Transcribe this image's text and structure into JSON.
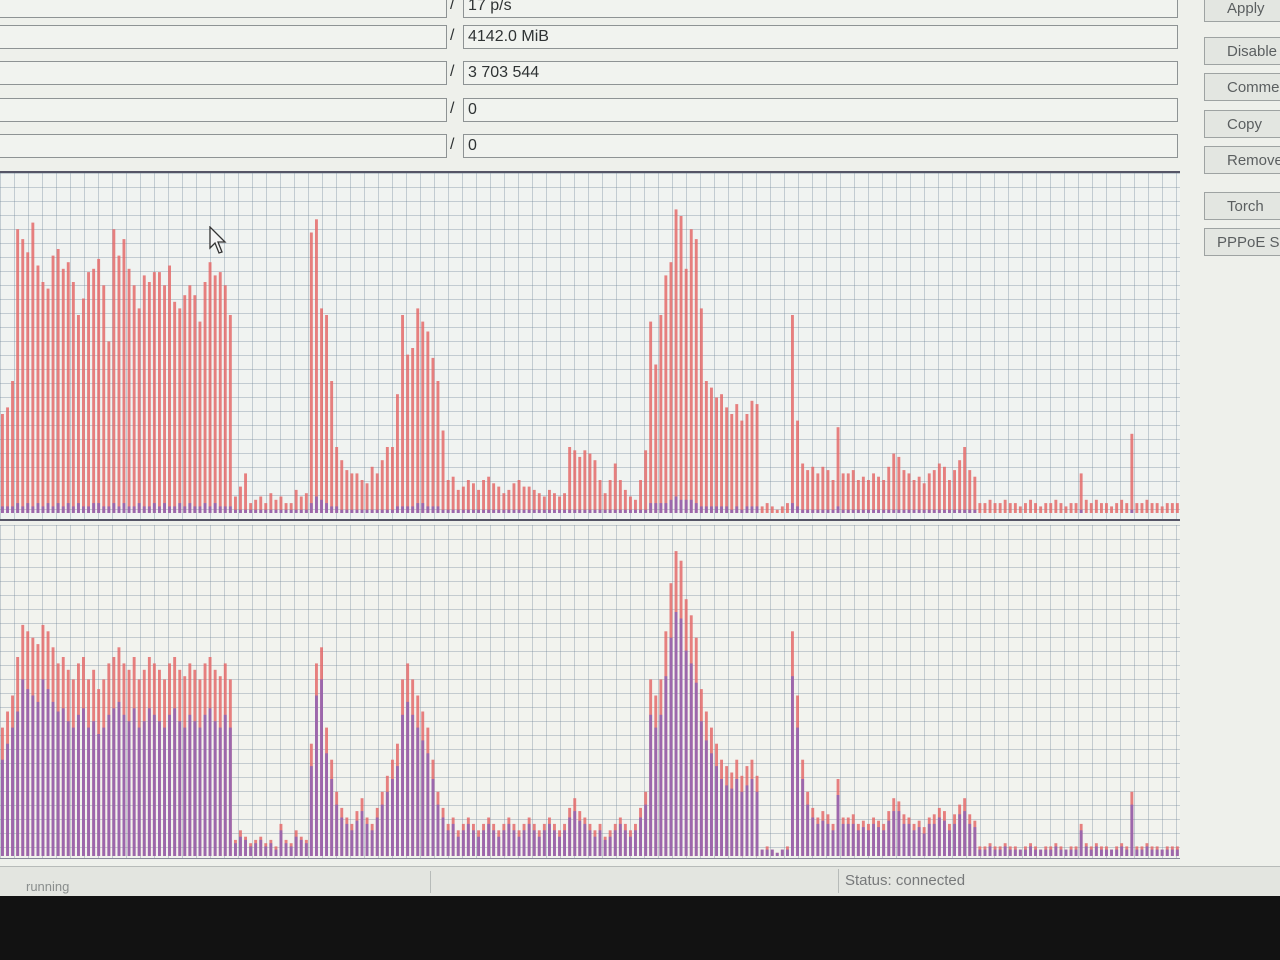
{
  "stats": [
    {
      "value": "17 p/s"
    },
    {
      "value": "4142.0 MiB"
    },
    {
      "value": "3 703 544"
    },
    {
      "value": "0"
    },
    {
      "value": "0"
    }
  ],
  "stat_separator": "/",
  "buttons": [
    "Apply",
    "Disable",
    "Comment",
    "Copy",
    "Remove",
    "Torch",
    "PPPoE Scan"
  ],
  "status": {
    "left": "running",
    "right": "Status: connected"
  },
  "colors": {
    "tx": "#e46a6a",
    "rx": "#8a62b8",
    "grid": "#9aa9b8",
    "background": "#f0f3f1"
  },
  "chart_data": [
    {
      "type": "bar",
      "title": "",
      "series": [
        {
          "values": [
            0.3,
            0.32,
            0.4,
            0.86,
            0.83,
            0.79,
            0.88,
            0.75,
            0.7,
            0.68,
            0.78,
            0.8,
            0.74,
            0.76,
            0.7,
            0.6,
            0.65,
            0.73,
            0.74,
            0.77,
            0.69,
            0.52,
            0.86,
            0.78,
            0.83,
            0.74,
            0.69,
            0.62,
            0.72,
            0.7,
            0.73,
            0.73,
            0.69,
            0.75,
            0.64,
            0.62,
            0.66,
            0.69,
            0.66,
            0.58,
            0.7,
            0.76,
            0.72,
            0.73,
            0.69,
            0.6,
            0.05,
            0.08,
            0.12,
            0.03,
            0.04,
            0.05,
            0.03,
            0.06,
            0.04,
            0.05,
            0.03,
            0.03,
            0.07,
            0.05,
            0.06,
            0.85,
            0.89,
            0.62,
            0.6,
            0.4,
            0.2,
            0.16,
            0.13,
            0.12,
            0.12,
            0.1,
            0.09,
            0.14,
            0.12,
            0.16,
            0.2,
            0.2,
            0.36,
            0.6,
            0.48,
            0.5,
            0.62,
            0.58,
            0.55,
            0.47,
            0.4,
            0.25,
            0.1,
            0.11,
            0.07,
            0.08,
            0.1,
            0.09,
            0.07,
            0.1,
            0.11,
            0.09,
            0.08,
            0.06,
            0.07,
            0.09,
            0.1,
            0.08,
            0.08,
            0.07,
            0.06,
            0.05,
            0.07,
            0.06,
            0.05,
            0.06,
            0.2,
            0.19,
            0.17,
            0.19,
            0.18,
            0.16,
            0.1,
            0.06,
            0.1,
            0.15,
            0.1,
            0.07,
            0.05,
            0.04,
            0.1,
            0.19,
            0.58,
            0.45,
            0.6,
            0.72,
            0.76,
            0.92,
            0.9,
            0.74,
            0.86,
            0.83,
            0.62,
            0.4,
            0.38,
            0.35,
            0.36,
            0.32,
            0.3,
            0.33,
            0.28,
            0.3,
            0.34,
            0.33,
            0.02,
            0.03,
            0.02,
            0.01,
            0.02,
            0.03,
            0.6,
            0.28,
            0.15,
            0.13,
            0.14,
            0.12,
            0.14,
            0.13,
            0.1,
            0.26,
            0.12,
            0.12,
            0.13,
            0.1,
            0.11,
            0.1,
            0.12,
            0.11,
            0.1,
            0.14,
            0.18,
            0.17,
            0.13,
            0.12,
            0.1,
            0.11,
            0.09,
            0.12,
            0.13,
            0.15,
            0.14,
            0.1,
            0.13,
            0.16,
            0.2,
            0.13,
            0.11,
            0.03,
            0.03,
            0.04,
            0.03,
            0.03,
            0.04,
            0.03,
            0.03,
            0.02,
            0.03,
            0.04,
            0.03,
            0.02,
            0.03,
            0.03,
            0.04,
            0.03,
            0.02,
            0.03,
            0.03,
            0.12,
            0.04,
            0.03,
            0.04,
            0.03,
            0.03,
            0.02,
            0.03,
            0.04,
            0.03,
            0.24,
            0.03,
            0.03,
            0.04,
            0.03,
            0.03,
            0.02,
            0.03,
            0.03,
            0.03
          ]
        },
        {
          "values": [
            0.02,
            0.02,
            0.02,
            0.03,
            0.02,
            0.03,
            0.02,
            0.03,
            0.02,
            0.03,
            0.02,
            0.03,
            0.02,
            0.03,
            0.02,
            0.03,
            0.02,
            0.02,
            0.03,
            0.03,
            0.02,
            0.02,
            0.03,
            0.02,
            0.03,
            0.02,
            0.02,
            0.03,
            0.02,
            0.02,
            0.03,
            0.02,
            0.03,
            0.02,
            0.02,
            0.03,
            0.02,
            0.03,
            0.02,
            0.02,
            0.03,
            0.02,
            0.03,
            0.02,
            0.02,
            0.02,
            0.01,
            0.01,
            0.01,
            0.01,
            0.01,
            0.01,
            0.01,
            0.01,
            0.01,
            0.01,
            0.01,
            0.01,
            0.01,
            0.01,
            0.01,
            0.03,
            0.05,
            0.04,
            0.03,
            0.02,
            0.02,
            0.01,
            0.01,
            0.01,
            0.01,
            0.01,
            0.01,
            0.01,
            0.01,
            0.01,
            0.01,
            0.01,
            0.02,
            0.02,
            0.02,
            0.02,
            0.03,
            0.03,
            0.02,
            0.02,
            0.02,
            0.01,
            0.01,
            0.01,
            0.01,
            0.01,
            0.01,
            0.01,
            0.01,
            0.01,
            0.01,
            0.01,
            0.01,
            0.01,
            0.01,
            0.01,
            0.01,
            0.01,
            0.01,
            0.01,
            0.01,
            0.01,
            0.01,
            0.01,
            0.01,
            0.01,
            0.01,
            0.01,
            0.01,
            0.01,
            0.01,
            0.01,
            0.01,
            0.01,
            0.01,
            0.01,
            0.01,
            0.01,
            0.01,
            0.01,
            0.01,
            0.01,
            0.03,
            0.03,
            0.03,
            0.03,
            0.04,
            0.05,
            0.04,
            0.04,
            0.04,
            0.03,
            0.02,
            0.02,
            0.02,
            0.02,
            0.02,
            0.02,
            0.01,
            0.02,
            0.01,
            0.02,
            0.02,
            0.02,
            0.0,
            0.0,
            0.0,
            0.0,
            0.0,
            0.0,
            0.03,
            0.02,
            0.01,
            0.01,
            0.01,
            0.01,
            0.01,
            0.01,
            0.01,
            0.02,
            0.01,
            0.01,
            0.01,
            0.01,
            0.01,
            0.01,
            0.01,
            0.01,
            0.01,
            0.01,
            0.01,
            0.01,
            0.01,
            0.01,
            0.01,
            0.01,
            0.01,
            0.01,
            0.01,
            0.01,
            0.01,
            0.01,
            0.01,
            0.01,
            0.01,
            0.01,
            0.01,
            0.0,
            0.0,
            0.0,
            0.0,
            0.0,
            0.0,
            0.0,
            0.0,
            0.0,
            0.0,
            0.0,
            0.0,
            0.0,
            0.0,
            0.0,
            0.0,
            0.0,
            0.0,
            0.0,
            0.0,
            0.01,
            0.0,
            0.0,
            0.0,
            0.0,
            0.0,
            0.0,
            0.0,
            0.0,
            0.0,
            0.01,
            0.0,
            0.0,
            0.0,
            0.0,
            0.0,
            0.0,
            0.0,
            0.0,
            0.0
          ]
        }
      ]
    },
    {
      "type": "bar",
      "title": "",
      "series": [
        {
          "values": [
            0.4,
            0.45,
            0.5,
            0.62,
            0.72,
            0.7,
            0.68,
            0.66,
            0.72,
            0.7,
            0.65,
            0.6,
            0.62,
            0.58,
            0.55,
            0.6,
            0.62,
            0.55,
            0.58,
            0.52,
            0.55,
            0.6,
            0.62,
            0.65,
            0.6,
            0.58,
            0.62,
            0.55,
            0.58,
            0.62,
            0.6,
            0.58,
            0.55,
            0.6,
            0.62,
            0.58,
            0.56,
            0.6,
            0.58,
            0.55,
            0.6,
            0.62,
            0.58,
            0.56,
            0.6,
            0.55,
            0.05,
            0.08,
            0.06,
            0.04,
            0.05,
            0.06,
            0.04,
            0.05,
            0.03,
            0.1,
            0.05,
            0.04,
            0.08,
            0.06,
            0.05,
            0.35,
            0.6,
            0.65,
            0.4,
            0.3,
            0.2,
            0.15,
            0.12,
            0.1,
            0.14,
            0.18,
            0.12,
            0.1,
            0.15,
            0.2,
            0.25,
            0.3,
            0.35,
            0.55,
            0.6,
            0.55,
            0.5,
            0.45,
            0.4,
            0.3,
            0.2,
            0.15,
            0.1,
            0.12,
            0.08,
            0.1,
            0.12,
            0.1,
            0.08,
            0.1,
            0.12,
            0.1,
            0.08,
            0.1,
            0.12,
            0.1,
            0.08,
            0.1,
            0.12,
            0.1,
            0.08,
            0.1,
            0.12,
            0.1,
            0.08,
            0.1,
            0.15,
            0.18,
            0.14,
            0.12,
            0.1,
            0.08,
            0.1,
            0.06,
            0.08,
            0.1,
            0.12,
            0.1,
            0.08,
            0.1,
            0.15,
            0.2,
            0.55,
            0.5,
            0.55,
            0.7,
            0.85,
            0.95,
            0.92,
            0.8,
            0.75,
            0.68,
            0.52,
            0.45,
            0.4,
            0.35,
            0.3,
            0.28,
            0.26,
            0.3,
            0.25,
            0.28,
            0.3,
            0.25,
            0.02,
            0.03,
            0.02,
            0.01,
            0.02,
            0.03,
            0.7,
            0.5,
            0.3,
            0.2,
            0.15,
            0.12,
            0.14,
            0.13,
            0.1,
            0.24,
            0.12,
            0.12,
            0.13,
            0.1,
            0.11,
            0.1,
            0.12,
            0.11,
            0.1,
            0.14,
            0.18,
            0.17,
            0.13,
            0.12,
            0.1,
            0.11,
            0.09,
            0.12,
            0.13,
            0.15,
            0.14,
            0.1,
            0.13,
            0.16,
            0.18,
            0.13,
            0.11,
            0.03,
            0.03,
            0.04,
            0.03,
            0.03,
            0.04,
            0.03,
            0.03,
            0.02,
            0.03,
            0.04,
            0.03,
            0.02,
            0.03,
            0.03,
            0.04,
            0.03,
            0.02,
            0.03,
            0.03,
            0.1,
            0.04,
            0.03,
            0.04,
            0.03,
            0.03,
            0.02,
            0.03,
            0.04,
            0.03,
            0.2,
            0.03,
            0.03,
            0.04,
            0.03,
            0.03,
            0.02,
            0.03,
            0.03,
            0.03
          ]
        },
        {
          "values": [
            0.3,
            0.35,
            0.4,
            0.45,
            0.55,
            0.52,
            0.5,
            0.48,
            0.55,
            0.52,
            0.48,
            0.45,
            0.46,
            0.42,
            0.4,
            0.44,
            0.46,
            0.4,
            0.42,
            0.38,
            0.4,
            0.44,
            0.46,
            0.48,
            0.44,
            0.42,
            0.46,
            0.4,
            0.42,
            0.46,
            0.44,
            0.42,
            0.4,
            0.44,
            0.46,
            0.42,
            0.4,
            0.44,
            0.42,
            0.4,
            0.44,
            0.46,
            0.42,
            0.4,
            0.44,
            0.4,
            0.04,
            0.06,
            0.05,
            0.03,
            0.04,
            0.05,
            0.03,
            0.04,
            0.02,
            0.08,
            0.04,
            0.03,
            0.06,
            0.05,
            0.04,
            0.28,
            0.5,
            0.55,
            0.32,
            0.24,
            0.16,
            0.12,
            0.1,
            0.08,
            0.11,
            0.14,
            0.1,
            0.08,
            0.12,
            0.16,
            0.2,
            0.24,
            0.28,
            0.44,
            0.48,
            0.44,
            0.4,
            0.36,
            0.32,
            0.24,
            0.16,
            0.12,
            0.08,
            0.1,
            0.06,
            0.08,
            0.1,
            0.08,
            0.06,
            0.08,
            0.1,
            0.08,
            0.06,
            0.08,
            0.1,
            0.08,
            0.06,
            0.08,
            0.1,
            0.08,
            0.06,
            0.08,
            0.1,
            0.08,
            0.06,
            0.08,
            0.12,
            0.14,
            0.11,
            0.1,
            0.08,
            0.06,
            0.08,
            0.05,
            0.06,
            0.08,
            0.1,
            0.08,
            0.06,
            0.08,
            0.12,
            0.16,
            0.44,
            0.4,
            0.44,
            0.56,
            0.68,
            0.76,
            0.74,
            0.64,
            0.6,
            0.54,
            0.42,
            0.36,
            0.32,
            0.28,
            0.24,
            0.22,
            0.21,
            0.24,
            0.2,
            0.22,
            0.24,
            0.2,
            0.02,
            0.02,
            0.02,
            0.01,
            0.02,
            0.02,
            0.56,
            0.4,
            0.24,
            0.16,
            0.12,
            0.1,
            0.11,
            0.1,
            0.08,
            0.19,
            0.1,
            0.1,
            0.1,
            0.08,
            0.09,
            0.08,
            0.1,
            0.09,
            0.08,
            0.11,
            0.14,
            0.14,
            0.1,
            0.1,
            0.08,
            0.09,
            0.07,
            0.1,
            0.1,
            0.12,
            0.11,
            0.08,
            0.1,
            0.13,
            0.14,
            0.1,
            0.09,
            0.02,
            0.02,
            0.03,
            0.02,
            0.02,
            0.03,
            0.02,
            0.02,
            0.02,
            0.02,
            0.03,
            0.02,
            0.02,
            0.02,
            0.02,
            0.03,
            0.02,
            0.02,
            0.02,
            0.02,
            0.08,
            0.03,
            0.02,
            0.03,
            0.02,
            0.02,
            0.02,
            0.02,
            0.03,
            0.02,
            0.16,
            0.02,
            0.02,
            0.03,
            0.02,
            0.02,
            0.02,
            0.02,
            0.02,
            0.02
          ]
        }
      ]
    }
  ]
}
